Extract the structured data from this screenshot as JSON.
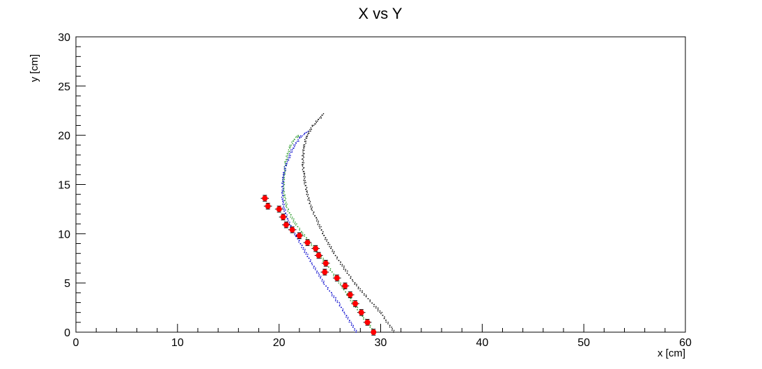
{
  "chart_data": {
    "type": "scatter",
    "title": "X vs Y",
    "xlabel": "x [cm]",
    "ylabel": "y [cm]",
    "xlim": [
      0,
      60
    ],
    "ylim": [
      0,
      30
    ],
    "x_ticks": [
      0,
      10,
      20,
      30,
      40,
      50,
      60
    ],
    "y_ticks": [
      0,
      5,
      10,
      15,
      20,
      25,
      30
    ],
    "x_tick_labels": [
      "0",
      "10",
      "20",
      "30",
      "40",
      "50",
      "60"
    ],
    "y_tick_labels": [
      "0",
      "5",
      "10",
      "15",
      "20",
      "25",
      "30"
    ],
    "grid": false,
    "legend": "none",
    "series": [
      {
        "color": "#000000",
        "marker": "dot",
        "x": [
          31.3,
          31.0,
          30.5,
          30.0,
          29.3,
          28.6,
          27.9,
          27.2,
          26.6,
          26.0,
          25.4,
          24.9,
          24.4,
          24.0,
          23.6,
          23.2,
          22.9,
          22.7,
          22.5,
          22.4,
          22.3,
          22.3,
          22.4,
          22.6,
          22.9,
          23.3,
          23.8,
          24.4
        ],
        "y": [
          0.0,
          0.5,
          1.2,
          2.0,
          2.8,
          3.6,
          4.4,
          5.3,
          6.2,
          7.1,
          8.0,
          8.9,
          9.8,
          10.7,
          11.6,
          12.5,
          13.4,
          14.3,
          15.2,
          16.1,
          17.0,
          17.9,
          18.8,
          19.7,
          20.4,
          21.0,
          21.6,
          22.3
        ]
      },
      {
        "color": "#2a9a2a",
        "marker": "dot",
        "x": [
          29.3,
          28.8,
          28.2,
          27.6,
          27.0,
          26.4,
          25.8,
          25.2,
          24.6,
          24.0,
          23.4,
          22.8,
          22.2,
          21.6,
          21.1,
          20.7,
          20.5,
          20.4,
          20.4,
          20.5,
          20.6,
          20.8,
          21.0,
          21.3,
          21.6,
          22.0
        ],
        "y": [
          0.0,
          0.8,
          1.6,
          2.5,
          3.4,
          4.3,
          5.2,
          6.1,
          7.0,
          7.8,
          8.6,
          9.4,
          10.2,
          11.0,
          11.9,
          12.8,
          13.7,
          14.6,
          15.5,
          16.4,
          17.3,
          18.1,
          18.8,
          19.4,
          19.8,
          20.1
        ]
      },
      {
        "color": "#0000cc",
        "marker": "dot",
        "x": [
          27.6,
          27.0,
          26.4,
          25.8,
          25.1,
          24.4,
          23.8,
          23.2,
          22.7,
          22.2,
          21.7,
          21.2,
          20.8,
          20.5,
          20.3,
          20.3,
          20.3,
          20.4,
          20.6,
          20.9,
          21.2,
          21.6,
          22.0,
          22.4,
          22.9
        ],
        "y": [
          0.0,
          1.0,
          2.0,
          3.0,
          4.0,
          5.0,
          6.0,
          7.0,
          7.9,
          8.8,
          9.7,
          10.6,
          11.5,
          12.4,
          13.3,
          14.2,
          15.1,
          16.0,
          16.9,
          17.7,
          18.5,
          19.2,
          19.8,
          20.2,
          20.5
        ]
      },
      {
        "color": "#ff0000",
        "marker": "circle",
        "error_bars": true,
        "x": [
          29.3,
          28.7,
          28.1,
          27.5,
          27.0,
          26.5,
          25.7,
          24.5,
          24.6,
          23.9,
          23.6,
          22.8,
          22.0,
          21.3,
          20.7,
          20.4,
          20.0,
          18.9,
          18.6
        ],
        "y": [
          0.0,
          1.0,
          2.0,
          2.9,
          3.8,
          4.7,
          5.5,
          6.1,
          7.0,
          7.8,
          8.5,
          9.1,
          9.8,
          10.4,
          10.9,
          11.7,
          12.5,
          12.8,
          13.6
        ],
        "x_err": [
          0.4,
          0.4,
          0.4,
          0.4,
          0.4,
          0.4,
          0.4,
          0.4,
          0.4,
          0.4,
          0.4,
          0.4,
          0.4,
          0.4,
          0.4,
          0.4,
          0.4,
          0.4,
          0.4
        ],
        "y_err": [
          0.3,
          0.3,
          0.3,
          0.3,
          0.3,
          0.3,
          0.3,
          0.3,
          0.3,
          0.3,
          0.3,
          0.3,
          0.3,
          0.3,
          0.3,
          0.3,
          0.3,
          0.3,
          0.3
        ]
      }
    ]
  }
}
